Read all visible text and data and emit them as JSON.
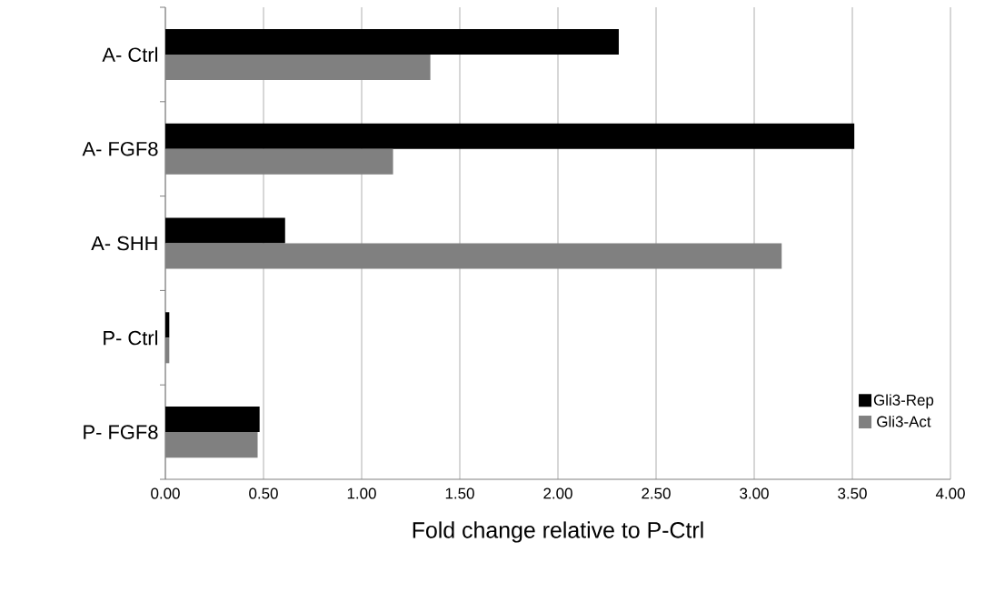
{
  "chart_data": {
    "type": "bar",
    "orientation": "horizontal",
    "xlabel": "Fold change relative to P-Ctrl",
    "categories": [
      "A- Ctrl",
      "A- FGF8",
      "A- SHH",
      "P- Ctrl",
      "P- FGF8"
    ],
    "series": [
      {
        "name": "Gli3-Rep",
        "color": "#000000",
        "values": [
          2.31,
          3.51,
          0.61,
          0.02,
          0.48
        ]
      },
      {
        "name": "Gli3-Act",
        "color": "#808080",
        "values": [
          1.35,
          1.16,
          3.14,
          0.02,
          0.47
        ]
      }
    ],
    "xlim": [
      0,
      4
    ],
    "xticks": [
      {
        "value": 0,
        "label": "0.00"
      },
      {
        "value": 0.5,
        "label": "0.50"
      },
      {
        "value": 1,
        "label": "1.00"
      },
      {
        "value": 1.5,
        "label": "1.50"
      },
      {
        "value": 2,
        "label": "2.00"
      },
      {
        "value": 2.5,
        "label": "2.50"
      },
      {
        "value": 3,
        "label": "3.00"
      },
      {
        "value": 3.5,
        "label": "3.50"
      },
      {
        "value": 4,
        "label": "4.00"
      }
    ],
    "grid": "x",
    "legend": "bottom right"
  }
}
